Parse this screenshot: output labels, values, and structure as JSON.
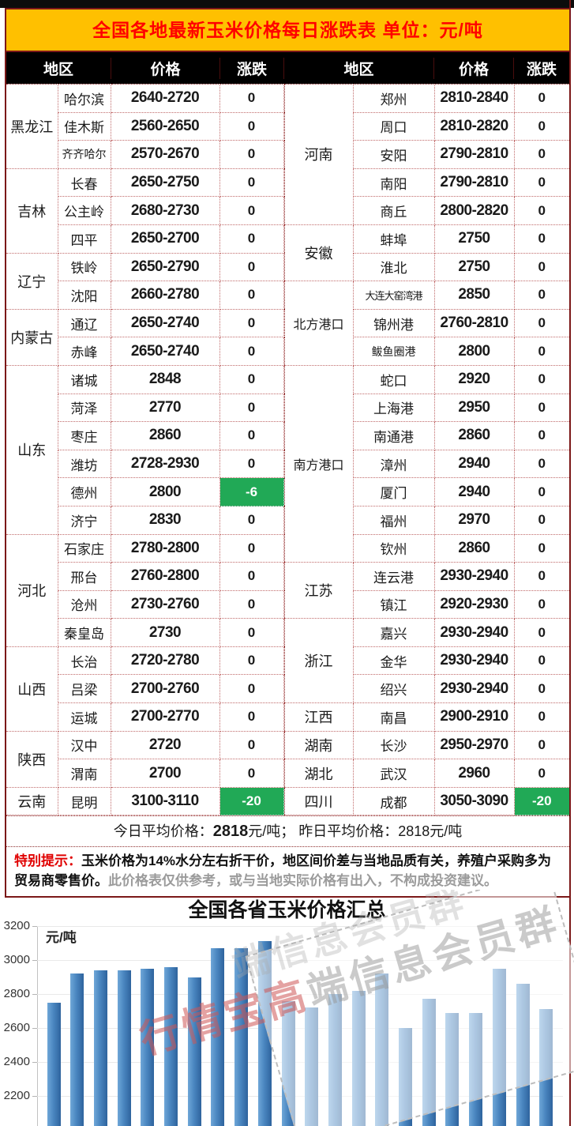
{
  "title_bar": {
    "text": "全国各地最新玉米价格每日涨跌表  单位：元/吨"
  },
  "header": {
    "region": "地区",
    "price": "价格",
    "change": "涨跌"
  },
  "table": {
    "left": [
      {
        "province": "黑龙江",
        "rows": [
          [
            "哈尔滨",
            "2640-2720",
            "0"
          ],
          [
            "佳木斯",
            "2560-2650",
            "0"
          ],
          [
            "齐齐哈尔",
            "2570-2670",
            "0"
          ]
        ]
      },
      {
        "province": "吉林",
        "rows": [
          [
            "长春",
            "2650-2750",
            "0"
          ],
          [
            "公主岭",
            "2680-2730",
            "0"
          ],
          [
            "四平",
            "2650-2700",
            "0"
          ]
        ]
      },
      {
        "province": "辽宁",
        "rows": [
          [
            "铁岭",
            "2650-2790",
            "0"
          ],
          [
            "沈阳",
            "2660-2780",
            "0"
          ]
        ]
      },
      {
        "province": "内蒙古",
        "rows": [
          [
            "通辽",
            "2650-2740",
            "0"
          ],
          [
            "赤峰",
            "2650-2740",
            "0"
          ]
        ]
      },
      {
        "province": "山东",
        "rows": [
          [
            "诸城",
            "2848",
            "0"
          ],
          [
            "菏泽",
            "2770",
            "0"
          ],
          [
            "枣庄",
            "2860",
            "0"
          ],
          [
            "潍坊",
            "2728-2930",
            "0"
          ],
          [
            "德州",
            "2800",
            "-6"
          ],
          [
            "济宁",
            "2830",
            "0"
          ]
        ]
      },
      {
        "province": "河北",
        "rows": [
          [
            "石家庄",
            "2780-2800",
            "0"
          ],
          [
            "邢台",
            "2760-2800",
            "0"
          ],
          [
            "沧州",
            "2730-2760",
            "0"
          ],
          [
            "秦皇岛",
            "2730",
            "0"
          ]
        ]
      },
      {
        "province": "山西",
        "rows": [
          [
            "长治",
            "2720-2780",
            "0"
          ],
          [
            "吕梁",
            "2700-2760",
            "0"
          ],
          [
            "运城",
            "2700-2770",
            "0"
          ]
        ]
      },
      {
        "province": "陕西",
        "rows": [
          [
            "汉中",
            "2720",
            "0"
          ],
          [
            "渭南",
            "2700",
            "0"
          ]
        ]
      },
      {
        "province": "云南",
        "rows": [
          [
            "昆明",
            "3100-3110",
            "-20"
          ]
        ]
      }
    ],
    "right": [
      {
        "province": "河南",
        "rows": [
          [
            "郑州",
            "2810-2840",
            "0"
          ],
          [
            "周口",
            "2810-2820",
            "0"
          ],
          [
            "安阳",
            "2790-2810",
            "0"
          ],
          [
            "南阳",
            "2790-2810",
            "0"
          ],
          [
            "商丘",
            "2800-2820",
            "0"
          ]
        ]
      },
      {
        "province": "安徽",
        "rows": [
          [
            "蚌埠",
            "2750",
            "0"
          ],
          [
            "淮北",
            "2750",
            "0"
          ]
        ]
      },
      {
        "province": "北方港口",
        "rows": [
          [
            "大连大窑湾港",
            "2850",
            "0"
          ],
          [
            "锦州港",
            "2760-2810",
            "0"
          ],
          [
            "鲅鱼圈港",
            "2800",
            "0"
          ]
        ]
      },
      {
        "province": "南方港口",
        "rows": [
          [
            "蛇口",
            "2920",
            "0"
          ],
          [
            "上海港",
            "2950",
            "0"
          ],
          [
            "南通港",
            "2860",
            "0"
          ],
          [
            "漳州",
            "2940",
            "0"
          ],
          [
            "厦门",
            "2940",
            "0"
          ],
          [
            "福州",
            "2970",
            "0"
          ],
          [
            "钦州",
            "2860",
            "0"
          ]
        ]
      },
      {
        "province": "江苏",
        "rows": [
          [
            "连云港",
            "2930-2940",
            "0"
          ],
          [
            "镇江",
            "2920-2930",
            "0"
          ]
        ]
      },
      {
        "province": "浙江",
        "rows": [
          [
            "嘉兴",
            "2930-2940",
            "0"
          ],
          [
            "金华",
            "2930-2940",
            "0"
          ],
          [
            "绍兴",
            "2930-2940",
            "0"
          ]
        ]
      },
      {
        "province": "江西",
        "rows": [
          [
            "南昌",
            "2900-2910",
            "0"
          ]
        ]
      },
      {
        "province": "湖南",
        "rows": [
          [
            "长沙",
            "2950-2970",
            "0"
          ]
        ]
      },
      {
        "province": "湖北",
        "rows": [
          [
            "武汉",
            "2960",
            "0"
          ]
        ]
      },
      {
        "province": "四川",
        "rows": [
          [
            "成都",
            "3050-3090",
            "-20"
          ]
        ]
      }
    ]
  },
  "summary": {
    "today_label": "今日平均价格：",
    "today_value": "2818",
    "today_unit": "元/吨；",
    "yesterday_label": "昨日平均价格：",
    "yesterday_value": "2818",
    "yesterday_unit": "元/吨"
  },
  "notice": {
    "label": "特别提示：",
    "bold_text": "玉米价格为14%水分左右折干价，地区间价差与当地品质有关，养殖户采购多为贸易商零售价。",
    "gray_text": "此价格表仅供参考，或与当地实际价格有出入，不构成投资建议。"
  },
  "watermark": {
    "red_part": "行情宝高",
    "gray_part": "端信息会员群"
  },
  "chart_data": {
    "type": "bar",
    "title": "全国各省玉米价格汇总",
    "ylabel": "元/吨",
    "values": [
      2750,
      2920,
      2940,
      2940,
      2950,
      2960,
      2900,
      3070,
      3070,
      3110,
      2760,
      2720,
      2800,
      2820,
      2920,
      2600,
      2770,
      2690,
      2690,
      2950,
      2860,
      2710
    ],
    "yticks": [
      3200,
      3000,
      2800,
      2600,
      2400,
      2200
    ],
    "ylim": [
      2000,
      3200
    ],
    "x_labels_visible": false,
    "grid": true,
    "legend": false,
    "bar_color": "#3f7cbf"
  },
  "colors": {
    "title_bg": "#ffc000",
    "title_text": "#ff0000",
    "header_bg": "#000000",
    "frame": "#7b1818",
    "change_green": "#21a956",
    "bar_blue": "#3f7cbf"
  }
}
